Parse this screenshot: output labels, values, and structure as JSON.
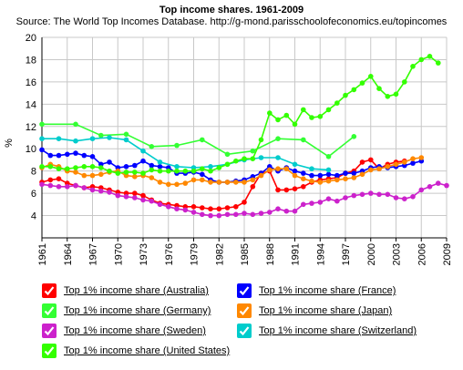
{
  "chart_data": {
    "type": "line",
    "title": "Top income shares. 1961-2009",
    "subtitle": "Source: The World Top Incomes Database. http://g-mond.parisschoolofeconomics.eu/topincomes",
    "xlabel": "",
    "ylabel": "%",
    "xlim": [
      1961,
      2009
    ],
    "ylim": [
      2,
      20
    ],
    "x_ticks": [
      "1961",
      "1964",
      "1967",
      "1970",
      "1973",
      "1976",
      "1979",
      "1982",
      "1985",
      "1988",
      "1991",
      "1994",
      "1997",
      "2000",
      "2003",
      "2006",
      "2009"
    ],
    "y_ticks": [
      "4",
      "6",
      "8",
      "10",
      "12",
      "14",
      "16",
      "18",
      "20"
    ],
    "grid": true,
    "legend_position": "bottom",
    "series": [
      {
        "name": "Top 1% income share (Australia)",
        "color": "#ff0000",
        "points": [
          [
            1961,
            7.0
          ],
          [
            1962,
            7.2
          ],
          [
            1963,
            7.3
          ],
          [
            1964,
            6.9
          ],
          [
            1965,
            6.7
          ],
          [
            1966,
            6.5
          ],
          [
            1967,
            6.6
          ],
          [
            1968,
            6.5
          ],
          [
            1969,
            6.3
          ],
          [
            1970,
            6.1
          ],
          [
            1971,
            6.0
          ],
          [
            1972,
            6.0
          ],
          [
            1973,
            5.8
          ],
          [
            1974,
            5.4
          ],
          [
            1975,
            5.1
          ],
          [
            1976,
            5.0
          ],
          [
            1977,
            4.9
          ],
          [
            1978,
            4.8
          ],
          [
            1979,
            4.8
          ],
          [
            1980,
            4.7
          ],
          [
            1981,
            4.6
          ],
          [
            1982,
            4.6
          ],
          [
            1983,
            4.7
          ],
          [
            1984,
            4.8
          ],
          [
            1985,
            5.2
          ],
          [
            1986,
            6.6
          ],
          [
            1987,
            7.8
          ],
          [
            1988,
            8.0
          ],
          [
            1989,
            6.3
          ],
          [
            1990,
            6.3
          ],
          [
            1991,
            6.4
          ],
          [
            1992,
            6.6
          ],
          [
            1993,
            7.0
          ],
          [
            1994,
            7.2
          ],
          [
            1995,
            7.3
          ],
          [
            1996,
            7.4
          ],
          [
            1997,
            7.8
          ],
          [
            1998,
            8.0
          ],
          [
            1999,
            8.8
          ],
          [
            2000,
            9.0
          ],
          [
            2001,
            8.2
          ],
          [
            2002,
            8.6
          ],
          [
            2003,
            8.8
          ],
          [
            2004,
            8.9
          ]
        ]
      },
      {
        "name": "Top 1% income share (France)",
        "color": "#0000ff",
        "points": [
          [
            1961,
            9.9
          ],
          [
            1962,
            9.4
          ],
          [
            1963,
            9.4
          ],
          [
            1964,
            9.5
          ],
          [
            1965,
            9.6
          ],
          [
            1966,
            9.4
          ],
          [
            1967,
            9.3
          ],
          [
            1968,
            8.6
          ],
          [
            1969,
            8.8
          ],
          [
            1970,
            8.3
          ],
          [
            1971,
            8.4
          ],
          [
            1972,
            8.5
          ],
          [
            1973,
            8.9
          ],
          [
            1974,
            8.5
          ],
          [
            1975,
            8.4
          ],
          [
            1976,
            8.3
          ],
          [
            1977,
            7.8
          ],
          [
            1978,
            7.8
          ],
          [
            1979,
            7.9
          ],
          [
            1980,
            7.7
          ],
          [
            1981,
            7.2
          ],
          [
            1982,
            7.0
          ],
          [
            1983,
            7.0
          ],
          [
            1984,
            7.1
          ],
          [
            1985,
            7.2
          ],
          [
            1986,
            7.5
          ],
          [
            1987,
            7.8
          ],
          [
            1988,
            8.4
          ],
          [
            1989,
            8.0
          ],
          [
            1990,
            8.3
          ],
          [
            1991,
            8.0
          ],
          [
            1992,
            7.8
          ],
          [
            1993,
            7.6
          ],
          [
            1994,
            7.6
          ],
          [
            1995,
            7.7
          ],
          [
            1996,
            7.6
          ],
          [
            1997,
            7.8
          ],
          [
            1998,
            7.8
          ],
          [
            1999,
            8.0
          ],
          [
            2000,
            8.3
          ],
          [
            2001,
            8.4
          ],
          [
            2002,
            8.3
          ],
          [
            2003,
            8.4
          ],
          [
            2004,
            8.5
          ],
          [
            2005,
            8.7
          ],
          [
            2006,
            8.9
          ]
        ]
      },
      {
        "name": "Top 1% income share (Germany)",
        "color": "#33ff33",
        "points": [
          [
            1961,
            12.2
          ],
          [
            1965,
            12.2
          ],
          [
            1968,
            11.2
          ],
          [
            1971,
            11.3
          ],
          [
            1974,
            10.2
          ],
          [
            1977,
            10.3
          ],
          [
            1980,
            10.8
          ],
          [
            1983,
            9.5
          ],
          [
            1986,
            9.8
          ],
          [
            1989,
            10.9
          ],
          [
            1992,
            10.8
          ],
          [
            1995,
            9.3
          ],
          [
            1998,
            11.1
          ]
        ]
      },
      {
        "name": "Top 1% income share (Japan)",
        "color": "#ff8800",
        "points": [
          [
            1961,
            8.3
          ],
          [
            1962,
            8.6
          ],
          [
            1963,
            8.4
          ],
          [
            1964,
            8.0
          ],
          [
            1965,
            7.9
          ],
          [
            1966,
            7.6
          ],
          [
            1967,
            7.6
          ],
          [
            1968,
            7.7
          ],
          [
            1969,
            7.9
          ],
          [
            1970,
            8.0
          ],
          [
            1971,
            7.6
          ],
          [
            1972,
            7.5
          ],
          [
            1973,
            7.6
          ],
          [
            1974,
            7.4
          ],
          [
            1975,
            7.0
          ],
          [
            1976,
            6.8
          ],
          [
            1977,
            6.8
          ],
          [
            1978,
            6.9
          ],
          [
            1979,
            7.2
          ],
          [
            1980,
            7.2
          ],
          [
            1981,
            7.0
          ],
          [
            1982,
            7.0
          ],
          [
            1983,
            7.0
          ],
          [
            1984,
            7.0
          ],
          [
            1985,
            7.0
          ],
          [
            1986,
            7.2
          ],
          [
            1987,
            7.6
          ],
          [
            1988,
            8.1
          ],
          [
            1989,
            8.2
          ],
          [
            1990,
            8.2
          ],
          [
            1991,
            7.6
          ],
          [
            1992,
            7.3
          ],
          [
            1993,
            7.1
          ],
          [
            1994,
            7.0
          ],
          [
            1995,
            7.1
          ],
          [
            1996,
            7.2
          ],
          [
            1997,
            7.3
          ],
          [
            1998,
            7.4
          ],
          [
            1999,
            7.7
          ],
          [
            2000,
            8.1
          ],
          [
            2001,
            8.2
          ],
          [
            2002,
            8.4
          ],
          [
            2003,
            8.6
          ],
          [
            2004,
            8.8
          ],
          [
            2005,
            9.1
          ],
          [
            2006,
            9.2
          ]
        ]
      },
      {
        "name": "Top 1% income share (Sweden)",
        "color": "#cc22cc",
        "points": [
          [
            1961,
            6.8
          ],
          [
            1962,
            6.7
          ],
          [
            1963,
            6.6
          ],
          [
            1964,
            6.6
          ],
          [
            1965,
            6.7
          ],
          [
            1966,
            6.5
          ],
          [
            1967,
            6.3
          ],
          [
            1968,
            6.2
          ],
          [
            1969,
            6.1
          ],
          [
            1970,
            5.8
          ],
          [
            1971,
            5.7
          ],
          [
            1972,
            5.6
          ],
          [
            1973,
            5.4
          ],
          [
            1974,
            5.3
          ],
          [
            1975,
            5.0
          ],
          [
            1976,
            4.8
          ],
          [
            1977,
            4.6
          ],
          [
            1978,
            4.5
          ],
          [
            1979,
            4.3
          ],
          [
            1980,
            4.1
          ],
          [
            1981,
            4.0
          ],
          [
            1982,
            4.0
          ],
          [
            1983,
            4.1
          ],
          [
            1984,
            4.1
          ],
          [
            1985,
            4.2
          ],
          [
            1986,
            4.1
          ],
          [
            1987,
            4.2
          ],
          [
            1988,
            4.3
          ],
          [
            1989,
            4.6
          ],
          [
            1990,
            4.4
          ],
          [
            1991,
            4.4
          ],
          [
            1992,
            5.0
          ],
          [
            1993,
            5.1
          ],
          [
            1994,
            5.2
          ],
          [
            1995,
            5.5
          ],
          [
            1996,
            5.3
          ],
          [
            1997,
            5.6
          ],
          [
            1998,
            5.8
          ],
          [
            1999,
            5.9
          ],
          [
            2000,
            6.0
          ],
          [
            2001,
            5.9
          ],
          [
            2002,
            5.9
          ],
          [
            2003,
            5.6
          ],
          [
            2004,
            5.5
          ],
          [
            2005,
            5.7
          ],
          [
            2006,
            6.3
          ],
          [
            2007,
            6.6
          ],
          [
            2008,
            6.9
          ],
          [
            2009,
            6.7
          ]
        ]
      },
      {
        "name": "Top 1% income share (Switzerland)",
        "color": "#00cccc",
        "points": [
          [
            1961,
            10.9
          ],
          [
            1963,
            10.9
          ],
          [
            1965,
            10.7
          ],
          [
            1967,
            10.9
          ],
          [
            1969,
            11.0
          ],
          [
            1971,
            10.8
          ],
          [
            1973,
            9.8
          ],
          [
            1975,
            8.8
          ],
          [
            1977,
            8.4
          ],
          [
            1979,
            8.3
          ],
          [
            1981,
            8.4
          ],
          [
            1983,
            8.6
          ],
          [
            1985,
            9.0
          ],
          [
            1987,
            9.2
          ],
          [
            1989,
            9.2
          ],
          [
            1991,
            8.6
          ],
          [
            1993,
            8.2
          ],
          [
            1995,
            8.1
          ]
        ]
      },
      {
        "name": "Top 1% income share (United States)",
        "color": "#33ff00",
        "points": [
          [
            1961,
            8.4
          ],
          [
            1962,
            8.4
          ],
          [
            1963,
            8.2
          ],
          [
            1964,
            8.2
          ],
          [
            1965,
            8.3
          ],
          [
            1966,
            8.4
          ],
          [
            1967,
            8.4
          ],
          [
            1968,
            8.3
          ],
          [
            1969,
            8.0
          ],
          [
            1970,
            7.8
          ],
          [
            1971,
            7.9
          ],
          [
            1972,
            7.9
          ],
          [
            1973,
            7.8
          ],
          [
            1974,
            8.1
          ],
          [
            1975,
            8.0
          ],
          [
            1976,
            8.0
          ],
          [
            1977,
            8.0
          ],
          [
            1978,
            8.0
          ],
          [
            1979,
            8.0
          ],
          [
            1980,
            8.2
          ],
          [
            1981,
            8.0
          ],
          [
            1982,
            8.3
          ],
          [
            1983,
            8.6
          ],
          [
            1984,
            8.9
          ],
          [
            1985,
            9.1
          ],
          [
            1986,
            9.1
          ],
          [
            1987,
            10.8
          ],
          [
            1988,
            13.2
          ],
          [
            1989,
            12.6
          ],
          [
            1990,
            13.0
          ],
          [
            1991,
            12.2
          ],
          [
            1992,
            13.5
          ],
          [
            1993,
            12.8
          ],
          [
            1994,
            12.9
          ],
          [
            1995,
            13.5
          ],
          [
            1996,
            14.1
          ],
          [
            1997,
            14.8
          ],
          [
            1998,
            15.3
          ],
          [
            1999,
            15.9
          ],
          [
            2000,
            16.5
          ],
          [
            2001,
            15.4
          ],
          [
            2002,
            14.7
          ],
          [
            2003,
            14.9
          ],
          [
            2004,
            16.0
          ],
          [
            2005,
            17.4
          ],
          [
            2006,
            18.0
          ],
          [
            2007,
            18.3
          ],
          [
            2008,
            17.7
          ]
        ]
      }
    ]
  },
  "legend": {
    "items": [
      {
        "label": "Top 1% income share (Australia)",
        "color": "#ff0000"
      },
      {
        "label": "Top 1% income share (France)",
        "color": "#0000ff"
      },
      {
        "label": "Top 1% income share (Germany)",
        "color": "#33ff33"
      },
      {
        "label": "Top 1% income share (Japan)",
        "color": "#ff8800"
      },
      {
        "label": "Top 1% income share (Sweden)",
        "color": "#cc22cc"
      },
      {
        "label": "Top 1% income share (Switzerland)",
        "color": "#00cccc"
      },
      {
        "label": "Top 1% income share (United States)",
        "color": "#33ff00"
      }
    ]
  }
}
